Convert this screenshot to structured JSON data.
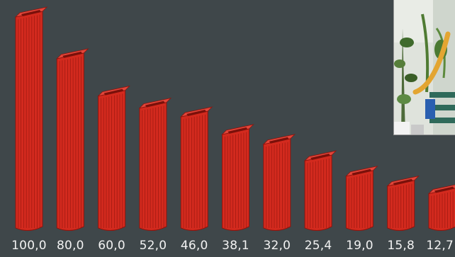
{
  "profiles": [
    {
      "size": "100,0",
      "rel": 1.0
    },
    {
      "size": "80,0",
      "rel": 0.81
    },
    {
      "size": "60,0",
      "rel": 0.64
    },
    {
      "size": "52,0",
      "rel": 0.585
    },
    {
      "size": "46,0",
      "rel": 0.545
    },
    {
      "size": "38,1",
      "rel": 0.465
    },
    {
      "size": "32,0",
      "rel": 0.42
    },
    {
      "size": "25,4",
      "rel": 0.345
    },
    {
      "size": "19,0",
      "rel": 0.275
    },
    {
      "size": "15,8",
      "rel": 0.23
    },
    {
      "size": "12,7",
      "rel": 0.195
    }
  ],
  "colors": {
    "background": "#3f474a",
    "profile_face": "#d32a1e",
    "profile_dark": "#8e140d",
    "profile_top": "#e2463a",
    "label_text": "#f2f2f2"
  },
  "photo": {
    "subject": "potted-plants-with-hose-photo"
  }
}
